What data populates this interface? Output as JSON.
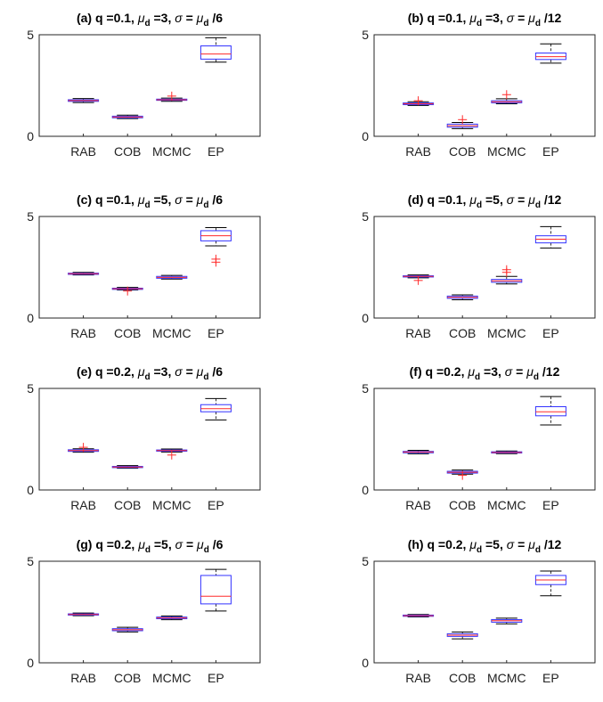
{
  "figure": {
    "background": "#ffffff"
  },
  "style": {
    "box_color": "#3333ff",
    "median_color": "#ff2a2a",
    "whisker_color": "#000000",
    "outlier_color": "#ff2a2a",
    "axis_color": "#262626"
  },
  "chart_data": [
    {
      "type": "boxplot",
      "title": {
        "prefix": "(a) q =0.1, ",
        "mu": "μ",
        "sub": "d",
        "mid": " =3, ",
        "sigma": "σ",
        "eq": " = ",
        "mu2": "μ",
        "sub2": "d",
        "tail": " /6"
      },
      "categories": [
        "RAB",
        "COB",
        "MCMC",
        "EP"
      ],
      "ylim": [
        0,
        5
      ],
      "yticks": [
        "0",
        "5"
      ],
      "boxes": [
        {
          "wlo": 1.66,
          "q1": 1.72,
          "med": 1.76,
          "q3": 1.8,
          "whi": 1.86,
          "outliers": []
        },
        {
          "wlo": 0.87,
          "q1": 0.91,
          "med": 0.95,
          "q3": 0.99,
          "whi": 1.04,
          "outliers": []
        },
        {
          "wlo": 1.72,
          "q1": 1.77,
          "med": 1.8,
          "q3": 1.83,
          "whi": 1.88,
          "outliers": [
            1.98
          ]
        },
        {
          "wlo": 3.65,
          "q1": 3.8,
          "med": 4.05,
          "q3": 4.45,
          "whi": 4.85,
          "outliers": []
        }
      ]
    },
    {
      "type": "boxplot",
      "title": {
        "prefix": "(b) q =0.1, ",
        "mu": "μ",
        "sub": "d",
        "mid": " =3, ",
        "sigma": "σ",
        "eq": " = ",
        "mu2": "μ",
        "sub2": "d",
        "tail": " /12"
      },
      "categories": [
        "RAB",
        "COB",
        "MCMC",
        "EP"
      ],
      "ylim": [
        0,
        5
      ],
      "yticks": [
        "0",
        "5"
      ],
      "boxes": [
        {
          "wlo": 1.52,
          "q1": 1.56,
          "med": 1.6,
          "q3": 1.64,
          "whi": 1.7,
          "outliers": [
            1.75
          ]
        },
        {
          "wlo": 0.38,
          "q1": 0.45,
          "med": 0.52,
          "q3": 0.6,
          "whi": 0.68,
          "outliers": [
            0.82
          ]
        },
        {
          "wlo": 1.6,
          "q1": 1.65,
          "med": 1.7,
          "q3": 1.75,
          "whi": 1.85,
          "outliers": [
            2.05
          ]
        },
        {
          "wlo": 3.6,
          "q1": 3.78,
          "med": 3.92,
          "q3": 4.1,
          "whi": 4.55,
          "outliers": []
        }
      ]
    },
    {
      "type": "boxplot",
      "title": {
        "prefix": "(c) q =0.1, ",
        "mu": "μ",
        "sub": "d",
        "mid": " =5, ",
        "sigma": "σ",
        "eq": " = ",
        "mu2": "μ",
        "sub2": "d",
        "tail": " /6"
      },
      "categories": [
        "RAB",
        "COB",
        "MCMC",
        "EP"
      ],
      "ylim": [
        0,
        5
      ],
      "yticks": [
        "0",
        "5"
      ],
      "boxes": [
        {
          "wlo": 2.12,
          "q1": 2.15,
          "med": 2.18,
          "q3": 2.21,
          "whi": 2.25,
          "outliers": []
        },
        {
          "wlo": 1.38,
          "q1": 1.41,
          "med": 1.44,
          "q3": 1.47,
          "whi": 1.51,
          "outliers": [
            1.33
          ]
        },
        {
          "wlo": 1.92,
          "q1": 1.96,
          "med": 2.0,
          "q3": 2.05,
          "whi": 2.1,
          "outliers": []
        },
        {
          "wlo": 3.55,
          "q1": 3.8,
          "med": 4.05,
          "q3": 4.3,
          "whi": 4.45,
          "outliers": [
            2.9,
            2.75
          ]
        }
      ]
    },
    {
      "type": "boxplot",
      "title": {
        "prefix": "(d) q =0.1, ",
        "mu": "μ",
        "sub": "d",
        "mid": " =5, ",
        "sigma": "σ",
        "eq": " = ",
        "mu2": "μ",
        "sub2": "d",
        "tail": " /12"
      },
      "categories": [
        "RAB",
        "COB",
        "MCMC",
        "EP"
      ],
      "ylim": [
        0,
        5
      ],
      "yticks": [
        "0",
        "5"
      ],
      "boxes": [
        {
          "wlo": 1.98,
          "q1": 2.02,
          "med": 2.05,
          "q3": 2.08,
          "whi": 2.12,
          "outliers": [
            1.85
          ]
        },
        {
          "wlo": 0.9,
          "q1": 0.97,
          "med": 1.02,
          "q3": 1.08,
          "whi": 1.14,
          "outliers": []
        },
        {
          "wlo": 1.68,
          "q1": 1.76,
          "med": 1.83,
          "q3": 1.9,
          "whi": 2.05,
          "outliers": [
            2.25,
            2.38
          ]
        },
        {
          "wlo": 3.45,
          "q1": 3.7,
          "med": 3.88,
          "q3": 4.05,
          "whi": 4.5,
          "outliers": []
        }
      ]
    },
    {
      "type": "boxplot",
      "title": {
        "prefix": "(e) q =0.2, ",
        "mu": "μ",
        "sub": "d",
        "mid": " =3, ",
        "sigma": "σ",
        "eq": " = ",
        "mu2": "μ",
        "sub2": "d",
        "tail": " /6"
      },
      "categories": [
        "RAB",
        "COB",
        "MCMC",
        "EP"
      ],
      "ylim": [
        0,
        5
      ],
      "yticks": [
        "0",
        "5"
      ],
      "boxes": [
        {
          "wlo": 1.86,
          "q1": 1.9,
          "med": 1.94,
          "q3": 1.98,
          "whi": 2.03,
          "outliers": [
            2.1
          ]
        },
        {
          "wlo": 1.07,
          "q1": 1.1,
          "med": 1.13,
          "q3": 1.16,
          "whi": 1.2,
          "outliers": []
        },
        {
          "wlo": 1.87,
          "q1": 1.91,
          "med": 1.94,
          "q3": 1.97,
          "whi": 2.02,
          "outliers": [
            1.72
          ]
        },
        {
          "wlo": 3.45,
          "q1": 3.85,
          "med": 4.0,
          "q3": 4.2,
          "whi": 4.5,
          "outliers": []
        }
      ]
    },
    {
      "type": "boxplot",
      "title": {
        "prefix": "(f) q =0.2, ",
        "mu": "μ",
        "sub": "d",
        "mid": " =3, ",
        "sigma": "σ",
        "eq": " = ",
        "mu2": "μ",
        "sub2": "d",
        "tail": " /12"
      },
      "categories": [
        "RAB",
        "COB",
        "MCMC",
        "EP"
      ],
      "ylim": [
        0,
        5
      ],
      "yticks": [
        "0",
        "5"
      ],
      "boxes": [
        {
          "wlo": 1.78,
          "q1": 1.83,
          "med": 1.87,
          "q3": 1.9,
          "whi": 1.95,
          "outliers": []
        },
        {
          "wlo": 0.78,
          "q1": 0.83,
          "med": 0.87,
          "q3": 0.92,
          "whi": 0.98,
          "outliers": [
            0.72
          ]
        },
        {
          "wlo": 1.79,
          "q1": 1.82,
          "med": 1.85,
          "q3": 1.88,
          "whi": 1.92,
          "outliers": []
        },
        {
          "wlo": 3.2,
          "q1": 3.65,
          "med": 3.85,
          "q3": 4.1,
          "whi": 4.6,
          "outliers": []
        }
      ]
    },
    {
      "type": "boxplot",
      "title": {
        "prefix": "(g) q =0.2, ",
        "mu": "μ",
        "sub": "d",
        "mid": " =5, ",
        "sigma": "σ",
        "eq": " = ",
        "mu2": "μ",
        "sub2": "d",
        "tail": " /6"
      },
      "categories": [
        "RAB",
        "COB",
        "MCMC",
        "EP"
      ],
      "ylim": [
        0,
        5
      ],
      "yticks": [
        "0",
        "5"
      ],
      "boxes": [
        {
          "wlo": 2.32,
          "q1": 2.35,
          "med": 2.38,
          "q3": 2.41,
          "whi": 2.45,
          "outliers": []
        },
        {
          "wlo": 1.52,
          "q1": 1.58,
          "med": 1.63,
          "q3": 1.68,
          "whi": 1.75,
          "outliers": []
        },
        {
          "wlo": 2.12,
          "q1": 2.17,
          "med": 2.21,
          "q3": 2.25,
          "whi": 2.3,
          "outliers": []
        },
        {
          "wlo": 2.55,
          "q1": 2.9,
          "med": 3.28,
          "q3": 4.3,
          "whi": 4.6,
          "outliers": []
        }
      ]
    },
    {
      "type": "boxplot",
      "title": {
        "prefix": "(h) q =0.2, ",
        "mu": "μ",
        "sub": "d",
        "mid": " =5, ",
        "sigma": "σ",
        "eq": " = ",
        "mu2": "μ",
        "sub2": "d",
        "tail": " /12"
      },
      "categories": [
        "RAB",
        "COB",
        "MCMC",
        "EP"
      ],
      "ylim": [
        0,
        5
      ],
      "yticks": [
        "0",
        "5"
      ],
      "boxes": [
        {
          "wlo": 2.26,
          "q1": 2.29,
          "med": 2.32,
          "q3": 2.35,
          "whi": 2.38,
          "outliers": []
        },
        {
          "wlo": 1.18,
          "q1": 1.3,
          "med": 1.36,
          "q3": 1.43,
          "whi": 1.52,
          "outliers": []
        },
        {
          "wlo": 1.92,
          "q1": 2.0,
          "med": 2.07,
          "q3": 2.13,
          "whi": 2.2,
          "outliers": []
        },
        {
          "wlo": 3.3,
          "q1": 3.85,
          "med": 4.08,
          "q3": 4.3,
          "whi": 4.52,
          "outliers": []
        }
      ]
    }
  ]
}
